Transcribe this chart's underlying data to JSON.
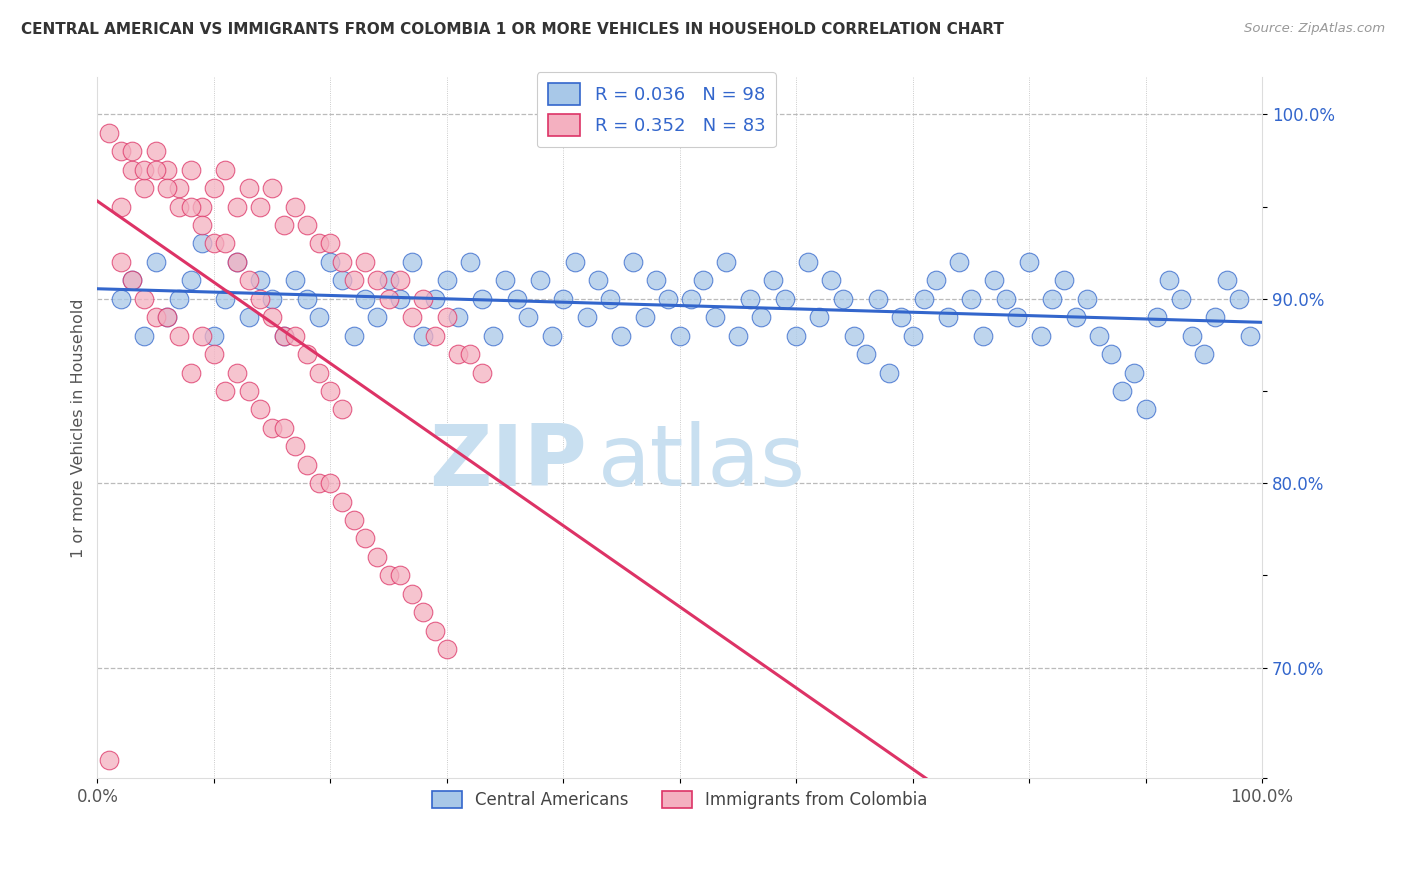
{
  "title": "CENTRAL AMERICAN VS IMMIGRANTS FROM COLOMBIA 1 OR MORE VEHICLES IN HOUSEHOLD CORRELATION CHART",
  "source": "Source: ZipAtlas.com",
  "ylabel": "1 or more Vehicles in Household",
  "legend_blue_label": "Central Americans",
  "legend_pink_label": "Immigrants from Colombia",
  "R_blue": 0.036,
  "N_blue": 98,
  "R_pink": 0.352,
  "N_pink": 83,
  "blue_color": "#a8c8e8",
  "pink_color": "#f4b0c0",
  "trend_blue": "#3366cc",
  "trend_pink": "#dd3366",
  "legend_text_color": "#3366cc",
  "watermark_zip": "ZIP",
  "watermark_atlas": "atlas",
  "watermark_color": "#c8dff0",
  "xlim": [
    0,
    100
  ],
  "ylim": [
    64,
    102
  ],
  "figsize": [
    14.06,
    8.92
  ],
  "dpi": 100,
  "blue_x": [
    2,
    3,
    4,
    5,
    6,
    7,
    8,
    9,
    10,
    11,
    12,
    13,
    14,
    15,
    16,
    17,
    18,
    19,
    20,
    21,
    22,
    23,
    24,
    25,
    26,
    27,
    28,
    29,
    30,
    31,
    32,
    33,
    34,
    35,
    36,
    37,
    38,
    39,
    40,
    41,
    42,
    43,
    44,
    45,
    46,
    47,
    48,
    49,
    50,
    51,
    52,
    53,
    54,
    55,
    56,
    57,
    58,
    59,
    60,
    61,
    62,
    63,
    64,
    65,
    66,
    67,
    68,
    69,
    70,
    71,
    72,
    73,
    74,
    75,
    76,
    77,
    78,
    79,
    80,
    81,
    82,
    83,
    84,
    85,
    86,
    87,
    88,
    89,
    90,
    91,
    92,
    93,
    94,
    95,
    96,
    97,
    98,
    99
  ],
  "blue_y": [
    90,
    91,
    88,
    92,
    89,
    90,
    91,
    93,
    88,
    90,
    92,
    89,
    91,
    90,
    88,
    91,
    90,
    89,
    92,
    91,
    88,
    90,
    89,
    91,
    90,
    92,
    88,
    90,
    91,
    89,
    92,
    90,
    88,
    91,
    90,
    89,
    91,
    88,
    90,
    92,
    89,
    91,
    90,
    88,
    92,
    89,
    91,
    90,
    88,
    90,
    91,
    89,
    92,
    88,
    90,
    89,
    91,
    90,
    88,
    92,
    89,
    91,
    90,
    88,
    87,
    90,
    86,
    89,
    88,
    90,
    91,
    89,
    92,
    90,
    88,
    91,
    90,
    89,
    92,
    88,
    90,
    91,
    89,
    90,
    88,
    87,
    85,
    86,
    84,
    89,
    91,
    90,
    88,
    87,
    89,
    91,
    90,
    88
  ],
  "pink_x": [
    1,
    2,
    3,
    4,
    5,
    6,
    7,
    8,
    9,
    10,
    11,
    12,
    13,
    14,
    15,
    16,
    17,
    18,
    19,
    20,
    21,
    22,
    23,
    24,
    25,
    26,
    27,
    28,
    29,
    30,
    31,
    32,
    33,
    2,
    3,
    4,
    5,
    6,
    7,
    8,
    9,
    10,
    11,
    12,
    13,
    14,
    15,
    16,
    17,
    18,
    19,
    20,
    21,
    22,
    23,
    24,
    25,
    26,
    27,
    28,
    29,
    30,
    1,
    2,
    3,
    4,
    5,
    6,
    7,
    8,
    9,
    10,
    11,
    12,
    13,
    14,
    15,
    16,
    17,
    18,
    19,
    20,
    21
  ],
  "pink_y": [
    65,
    95,
    97,
    96,
    98,
    97,
    96,
    97,
    95,
    96,
    97,
    95,
    96,
    95,
    96,
    94,
    95,
    94,
    93,
    93,
    92,
    91,
    92,
    91,
    90,
    91,
    89,
    90,
    88,
    89,
    87,
    87,
    86,
    92,
    91,
    90,
    89,
    89,
    88,
    86,
    88,
    87,
    85,
    86,
    85,
    84,
    83,
    83,
    82,
    81,
    80,
    80,
    79,
    78,
    77,
    76,
    75,
    75,
    74,
    73,
    72,
    71,
    99,
    98,
    98,
    97,
    97,
    96,
    95,
    95,
    94,
    93,
    93,
    92,
    91,
    90,
    89,
    88,
    88,
    87,
    86,
    85,
    84
  ]
}
